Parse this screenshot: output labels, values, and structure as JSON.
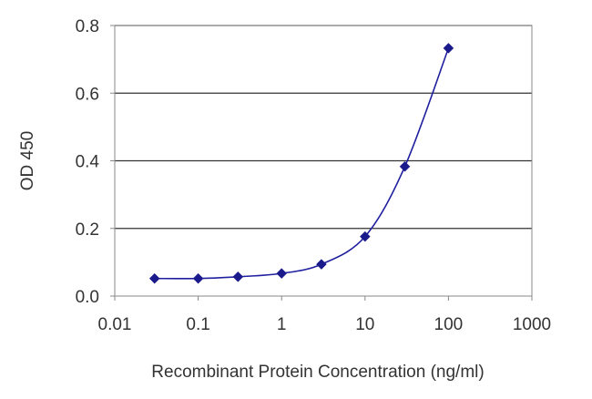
{
  "chart_data": {
    "type": "line",
    "title": "",
    "xlabel": "Recombinant Protein Concentration (ng/ml)",
    "ylabel": "OD 450",
    "x_scale": "log",
    "xlim": [
      0.01,
      1000
    ],
    "ylim": [
      0,
      0.8
    ],
    "x_ticks": [
      "0.01",
      "0.1",
      "1",
      "10",
      "100",
      "1000"
    ],
    "y_ticks": [
      "0.0",
      "0.2",
      "0.4",
      "0.6",
      "0.8"
    ],
    "grid": "horizontal",
    "legend": "none",
    "series": [
      {
        "x": [
          0.03,
          0.1,
          0.3,
          1,
          3,
          10,
          30,
          100
        ],
        "y": [
          0.052,
          0.052,
          0.057,
          0.067,
          0.094,
          0.176,
          0.383,
          0.733
        ]
      }
    ],
    "colors": {
      "line": "#1f1f9f",
      "marker": "#1a1a8c",
      "grid": "#333333",
      "axes": "#888888"
    }
  }
}
